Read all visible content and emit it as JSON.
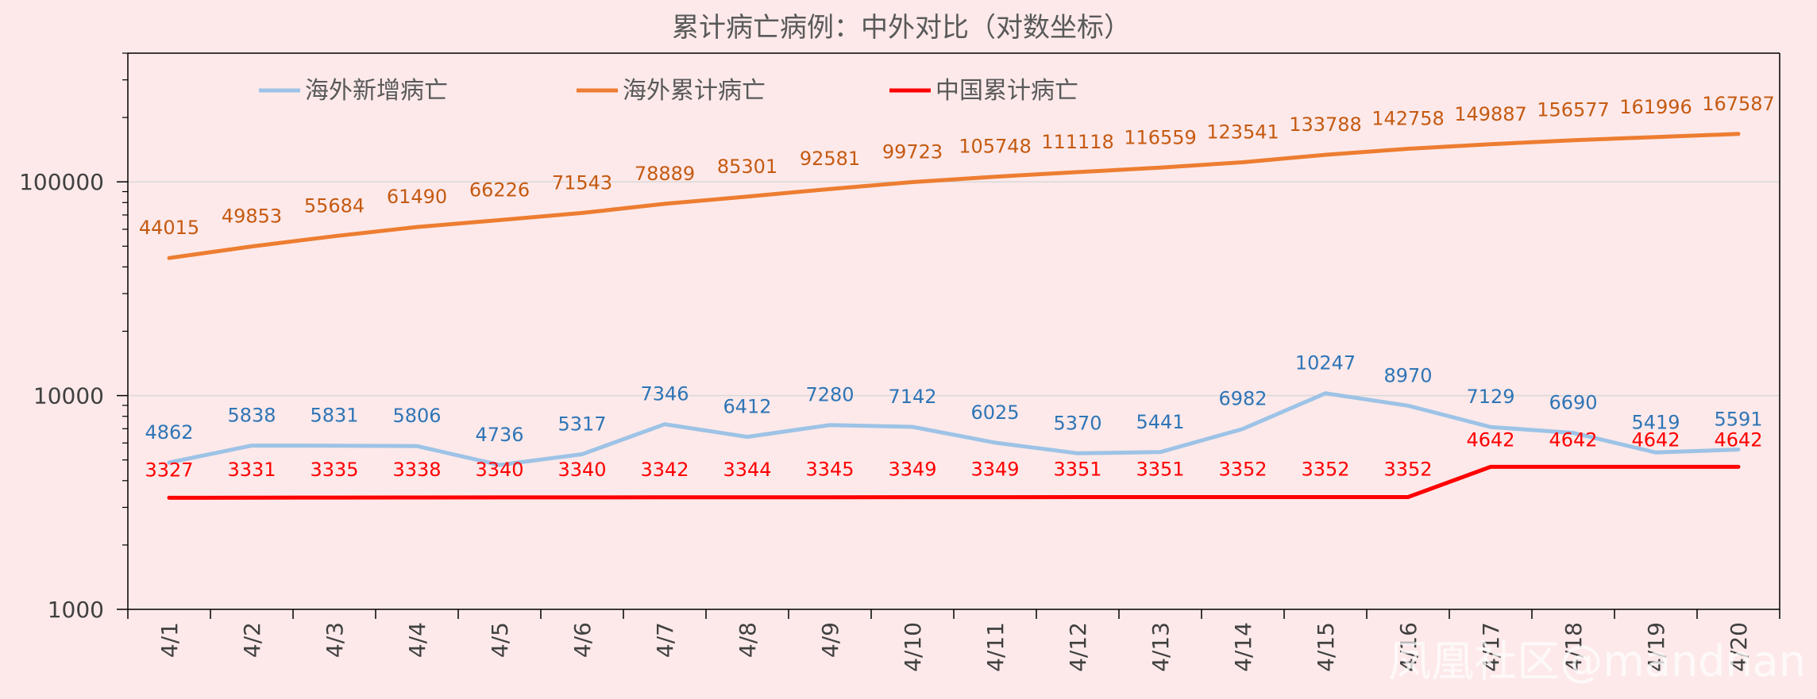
{
  "chart_data": {
    "type": "line",
    "title": "累计病亡病例：中外对比（对数坐标）",
    "y_scale": "log",
    "ylim": [
      1000,
      400000
    ],
    "y_ticks": [
      "1000",
      "10000",
      "100000"
    ],
    "grid": true,
    "legend_position": "top-left",
    "categories": [
      "4/1",
      "4/2",
      "4/3",
      "4/4",
      "4/5",
      "4/6",
      "4/7",
      "4/8",
      "4/9",
      "4/10",
      "4/11",
      "4/12",
      "4/13",
      "4/14",
      "4/15",
      "4/16",
      "4/17",
      "4/18",
      "4/19",
      "4/20"
    ],
    "series": [
      {
        "name": "海外新增病亡",
        "color": "#9dc3e6",
        "label_color": "#2e75b6",
        "values": [
          4862,
          5838,
          5831,
          5806,
          4736,
          5317,
          7346,
          6412,
          7280,
          7142,
          6025,
          5370,
          5441,
          6982,
          10247,
          8970,
          7129,
          6690,
          5419,
          5591
        ]
      },
      {
        "name": "海外累计病亡",
        "color": "#ed7d31",
        "label_color": "#c55a11",
        "values": [
          44015,
          49853,
          55684,
          61490,
          66226,
          71543,
          78889,
          85301,
          92581,
          99723,
          105748,
          111118,
          116559,
          123541,
          133788,
          142758,
          149887,
          156577,
          161996,
          167587
        ]
      },
      {
        "name": "中国累计病亡",
        "color": "#ff0000",
        "label_color": "#ff0000",
        "values": [
          3327,
          3331,
          3335,
          3338,
          3340,
          3340,
          3342,
          3344,
          3345,
          3349,
          3349,
          3351,
          3351,
          3352,
          3352,
          3352,
          4642,
          4642,
          4642,
          4642
        ]
      }
    ]
  },
  "watermark": "凤凰社区@mandnan"
}
